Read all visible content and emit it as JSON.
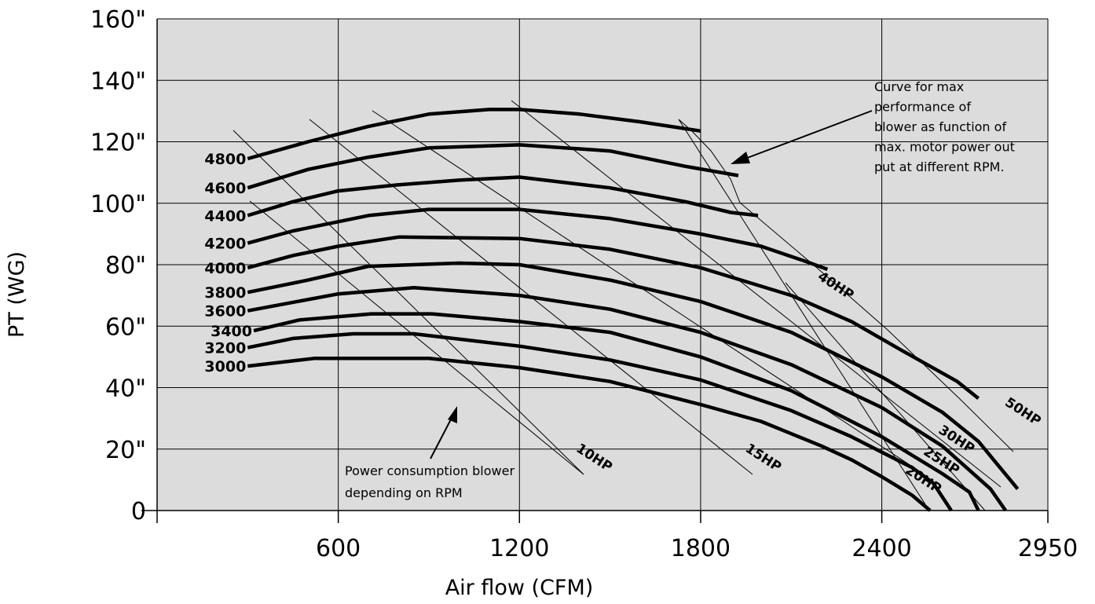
{
  "chart_data": {
    "type": "line",
    "xlabel": "Air flow (CFM)",
    "ylabel": "PT (WG)",
    "xlim": [
      0,
      2950
    ],
    "ylim": [
      0,
      160
    ],
    "x_ticks": [
      {
        "value": 600,
        "label": "600"
      },
      {
        "value": 1200,
        "label": "1200"
      },
      {
        "value": 1800,
        "label": "1800"
      },
      {
        "value": 2400,
        "label": "2400"
      },
      {
        "value": 2950,
        "label": "2950"
      }
    ],
    "y_ticks": [
      {
        "value": 0,
        "label": "0"
      },
      {
        "value": 20,
        "label": "20\""
      },
      {
        "value": 40,
        "label": "40\""
      },
      {
        "value": 60,
        "label": "60\""
      },
      {
        "value": 80,
        "label": "80\""
      },
      {
        "value": 100,
        "label": "100\""
      },
      {
        "value": 120,
        "label": "120\""
      },
      {
        "value": 140,
        "label": "140\""
      },
      {
        "value": 160,
        "label": "160\""
      }
    ],
    "grid": true,
    "background_color": "#dcdcdc",
    "series": [
      {
        "name": "3000",
        "points": [
          [
            300,
            47
          ],
          [
            520,
            49.5
          ],
          [
            900,
            49.5
          ],
          [
            1200,
            46.5
          ],
          [
            1500,
            42
          ],
          [
            1800,
            34.5
          ],
          [
            2000,
            29
          ],
          [
            2200,
            21
          ],
          [
            2300,
            16.5
          ],
          [
            2400,
            11
          ],
          [
            2500,
            5
          ],
          [
            2560,
            0
          ]
        ]
      },
      {
        "name": "3200",
        "points": [
          [
            300,
            53
          ],
          [
            450,
            56
          ],
          [
            650,
            57.5
          ],
          [
            850,
            57.5
          ],
          [
            1200,
            53.5
          ],
          [
            1500,
            49
          ],
          [
            1800,
            42.5
          ],
          [
            2100,
            32.5
          ],
          [
            2300,
            24
          ],
          [
            2500,
            14
          ],
          [
            2570,
            9
          ],
          [
            2630,
            0
          ]
        ]
      },
      {
        "name": "3400",
        "points": [
          [
            320,
            58.5
          ],
          [
            470,
            62
          ],
          [
            710,
            64
          ],
          [
            910,
            64
          ],
          [
            1200,
            61.5
          ],
          [
            1500,
            58
          ],
          [
            1800,
            50
          ],
          [
            2100,
            39
          ],
          [
            2400,
            24
          ],
          [
            2600,
            12
          ],
          [
            2690,
            6
          ],
          [
            2720,
            0
          ]
        ]
      },
      {
        "name": "3600",
        "points": [
          [
            300,
            65
          ],
          [
            600,
            70.5
          ],
          [
            850,
            72.5
          ],
          [
            1200,
            70
          ],
          [
            1500,
            65.5
          ],
          [
            1800,
            58
          ],
          [
            2100,
            47.5
          ],
          [
            2400,
            33.5
          ],
          [
            2600,
            21
          ],
          [
            2760,
            7
          ],
          [
            2810,
            0
          ]
        ]
      },
      {
        "name": "3800",
        "points": [
          [
            300,
            71
          ],
          [
            500,
            75
          ],
          [
            700,
            79.5
          ],
          [
            1000,
            80.5
          ],
          [
            1200,
            80
          ],
          [
            1500,
            75
          ],
          [
            1800,
            68
          ],
          [
            2100,
            58
          ],
          [
            2400,
            43.5
          ],
          [
            2600,
            32
          ],
          [
            2720,
            22.5
          ],
          [
            2850,
            7
          ]
        ]
      },
      {
        "name": "4000",
        "points": [
          [
            300,
            79
          ],
          [
            450,
            83
          ],
          [
            600,
            86
          ],
          [
            800,
            89
          ],
          [
            1200,
            88.5
          ],
          [
            1500,
            85
          ],
          [
            1800,
            79
          ],
          [
            2100,
            70
          ],
          [
            2300,
            61.5
          ],
          [
            2450,
            53
          ],
          [
            2650,
            42
          ],
          [
            2720,
            36.5
          ]
        ]
      },
      {
        "name": "4200",
        "points": [
          [
            300,
            87
          ],
          [
            450,
            91
          ],
          [
            700,
            96
          ],
          [
            900,
            98
          ],
          [
            1200,
            98
          ],
          [
            1500,
            95
          ],
          [
            1800,
            90
          ],
          [
            2000,
            86
          ],
          [
            2150,
            81
          ],
          [
            2220,
            78.5
          ]
        ]
      },
      {
        "name": "4400",
        "points": [
          [
            300,
            96
          ],
          [
            450,
            100.5
          ],
          [
            600,
            104
          ],
          [
            800,
            106
          ],
          [
            1000,
            107.5
          ],
          [
            1200,
            108.5
          ],
          [
            1500,
            105
          ],
          [
            1750,
            100.5
          ],
          [
            1900,
            97
          ],
          [
            1990,
            96
          ]
        ]
      },
      {
        "name": "4600",
        "points": [
          [
            300,
            105
          ],
          [
            500,
            111
          ],
          [
            700,
            115
          ],
          [
            900,
            118
          ],
          [
            1200,
            119
          ],
          [
            1500,
            117
          ],
          [
            1750,
            112
          ],
          [
            1925,
            109
          ]
        ]
      },
      {
        "name": "4800",
        "points": [
          [
            300,
            114.5
          ],
          [
            500,
            120
          ],
          [
            700,
            125
          ],
          [
            900,
            129
          ],
          [
            1100,
            130.5
          ],
          [
            1200,
            130.5
          ],
          [
            1400,
            129
          ],
          [
            1600,
            126.5
          ],
          [
            1800,
            123.5
          ]
        ]
      }
    ],
    "power_lines": [
      {
        "label": "10HP",
        "label_at": [
          1440,
          16
        ]
      },
      {
        "label": "15HP",
        "label_at": [
          2000,
          16
        ]
      },
      {
        "label": "20HP",
        "label_at": [
          2530,
          9
        ]
      },
      {
        "label": "25HP",
        "label_at": [
          2590,
          15
        ]
      },
      {
        "label": "30HP",
        "label_at": [
          2640,
          22
        ]
      },
      {
        "label": "40HP",
        "label_at": [
          2240,
          72
        ]
      },
      {
        "label": "50HP",
        "label_at": [
          2860,
          31
        ]
      }
    ],
    "annotations": {
      "max_curve": [
        "Curve for max",
        "performance of",
        "blower as function of",
        "max. motor power out",
        "put at different RPM."
      ],
      "power_note": [
        "Power consumption blower",
        "depending on RPM"
      ]
    }
  }
}
